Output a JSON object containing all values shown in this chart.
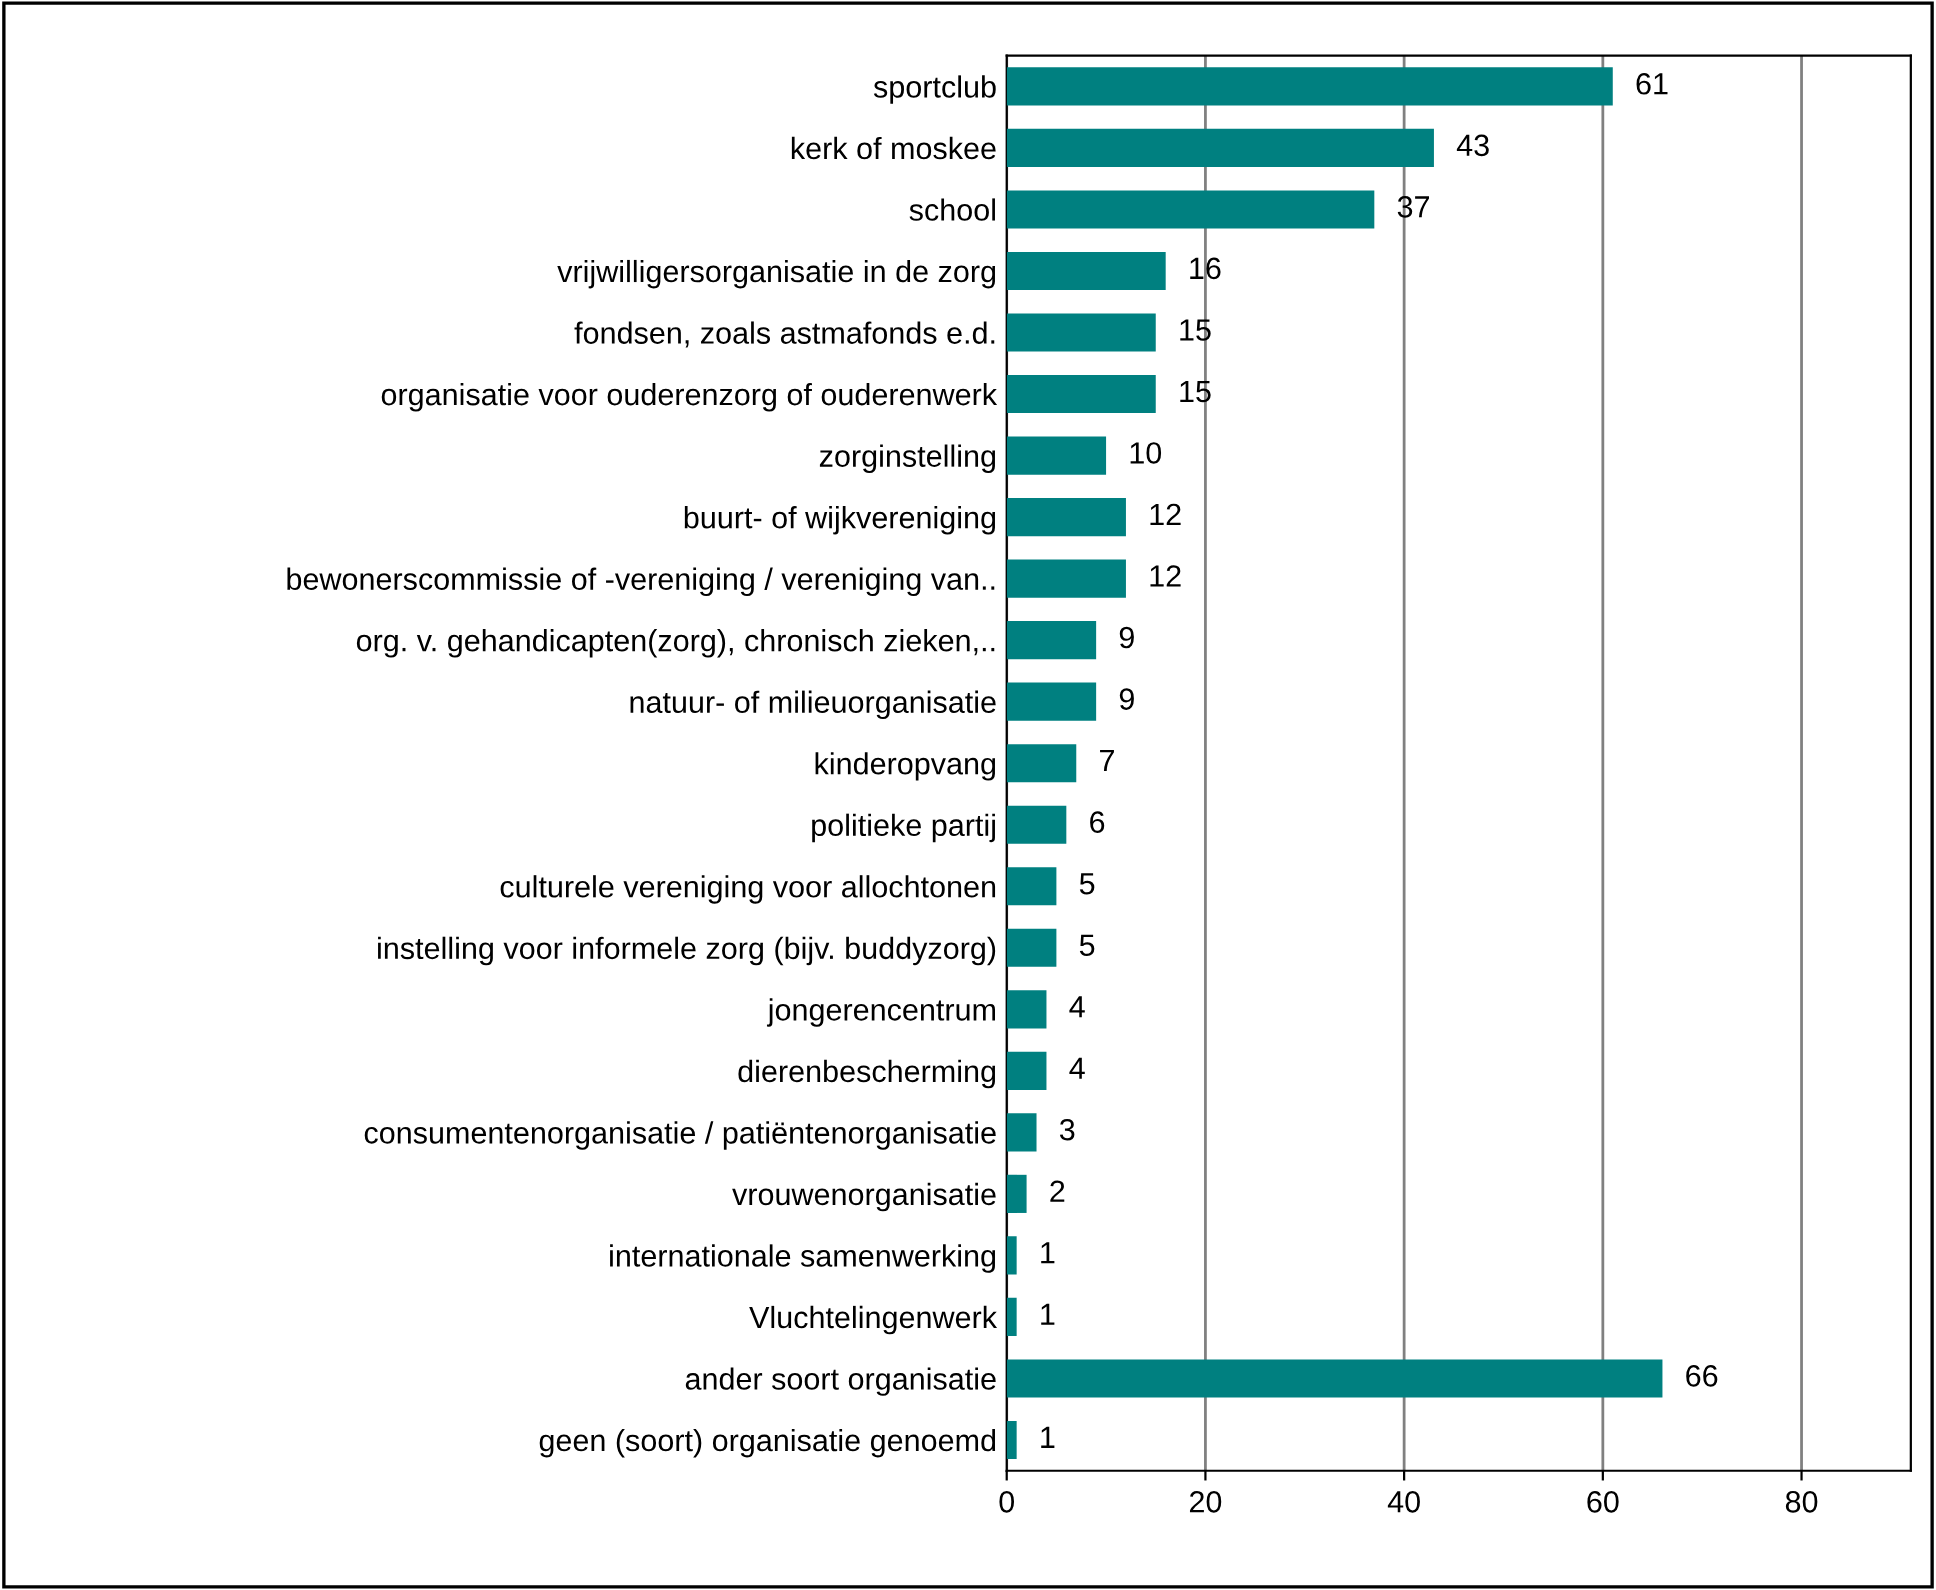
{
  "chart_data": {
    "type": "bar",
    "orientation": "horizontal",
    "categories": [
      "sportclub",
      "kerk of moskee",
      "school",
      "vrijwilligersorganisatie in de zorg",
      "fondsen, zoals astmafonds e.d.",
      "organisatie voor ouderenzorg of ouderenwerk",
      "zorginstelling",
      "buurt- of wijkvereniging",
      "bewonerscommissie of -vereniging / vereniging van..",
      "org. v. gehandicapten(zorg), chronisch zieken,..",
      "natuur- of milieuorganisatie",
      "kinderopvang",
      "politieke partij",
      "culturele vereniging voor allochtonen",
      "instelling voor informele zorg (bijv. buddyzorg)",
      "jongerencentrum",
      "dierenbescherming",
      "consumentenorganisatie / patiëntenorganisatie",
      "vrouwenorganisatie",
      "internationale samenwerking",
      "Vluchtelingenwerk",
      "ander soort organisatie",
      "geen (soort) organisatie genoemd"
    ],
    "values": [
      61,
      43,
      37,
      16,
      15,
      15,
      10,
      12,
      12,
      9,
      9,
      7,
      6,
      5,
      5,
      4,
      4,
      3,
      2,
      1,
      1,
      66,
      1
    ],
    "color": "#008080",
    "data_labels": true,
    "xlim": [
      0,
      91
    ],
    "xticks": [
      0,
      20,
      40,
      60,
      80
    ],
    "grid": "x"
  }
}
